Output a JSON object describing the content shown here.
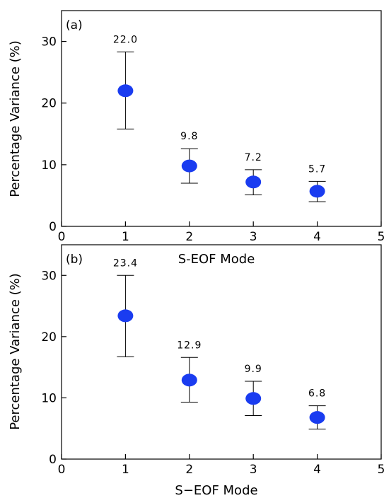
{
  "chart_data": [
    {
      "type": "scatter",
      "panel_label": "(a)",
      "xlabel": "S-EOF Mode",
      "ylabel": "Percentage Variance (%)",
      "xlim": [
        0,
        5
      ],
      "ylim": [
        0,
        35
      ],
      "x_ticks": [
        0,
        1,
        2,
        3,
        4,
        5
      ],
      "y_ticks": [
        0,
        10,
        20,
        30
      ],
      "marker_color": "#1a3cf0",
      "points": [
        {
          "x": 1,
          "y": 22.0,
          "err_low": 15.8,
          "err_high": 28.3,
          "label": "22.0"
        },
        {
          "x": 2,
          "y": 9.8,
          "err_low": 7.0,
          "err_high": 12.6,
          "label": "9.8"
        },
        {
          "x": 3,
          "y": 7.2,
          "err_low": 5.1,
          "err_high": 9.2,
          "label": "7.2"
        },
        {
          "x": 4,
          "y": 5.7,
          "err_low": 4.0,
          "err_high": 7.3,
          "label": "5.7"
        }
      ]
    },
    {
      "type": "scatter",
      "panel_label": "(b)",
      "xlabel": "S−EOF Mode",
      "ylabel": "Percentage Variance (%)",
      "xlim": [
        0,
        5
      ],
      "ylim": [
        0,
        35
      ],
      "x_ticks": [
        0,
        1,
        2,
        3,
        4,
        5
      ],
      "y_ticks": [
        0,
        10,
        20,
        30
      ],
      "marker_color": "#1a3cf0",
      "points": [
        {
          "x": 1,
          "y": 23.4,
          "err_low": 16.7,
          "err_high": 30.0,
          "label": "23.4"
        },
        {
          "x": 2,
          "y": 12.9,
          "err_low": 9.3,
          "err_high": 16.6,
          "label": "12.9"
        },
        {
          "x": 3,
          "y": 9.9,
          "err_low": 7.1,
          "err_high": 12.7,
          "label": "9.9"
        },
        {
          "x": 4,
          "y": 6.8,
          "err_low": 4.9,
          "err_high": 8.7,
          "label": "6.8"
        }
      ]
    }
  ]
}
